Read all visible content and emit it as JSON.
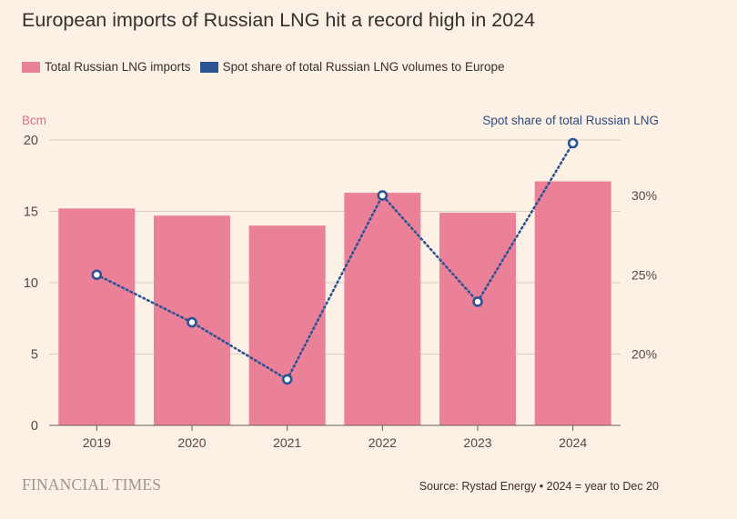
{
  "title": "European imports of Russian LNG hit a record high in 2024",
  "legend": [
    {
      "label": "Total Russian LNG imports",
      "color": "#eb8198"
    },
    {
      "label": "Spot share of total Russian LNG volumes to Europe",
      "color": "#2c5394"
    }
  ],
  "footer": {
    "logo_text": "FINANCIAL TIMES",
    "source": "Source: Rystad Energy • 2024 = year to Dec 20"
  },
  "chart_data": {
    "type": "bar",
    "categories": [
      "2019",
      "2020",
      "2021",
      "2022",
      "2023",
      "2024"
    ],
    "series": [
      {
        "name": "Total Russian LNG imports",
        "type": "bar",
        "axis": "left",
        "values": [
          15.2,
          14.7,
          14.0,
          16.3,
          14.9,
          17.1
        ],
        "color": "#eb8198"
      },
      {
        "name": "Spot share of total Russian LNG volumes to Europe",
        "type": "line",
        "style": "dotted",
        "markers": true,
        "axis": "right",
        "values": [
          25.0,
          22.0,
          18.4,
          30.0,
          23.3,
          33.3
        ],
        "color": "#2c5394"
      }
    ],
    "left_axis": {
      "unit_label": "Bcm",
      "ticks": [
        0,
        5,
        10,
        15,
        20
      ],
      "tick_labels": [
        "0",
        "5",
        "10",
        "15",
        "20"
      ],
      "range": [
        0,
        20
      ],
      "color": "#e16b8c"
    },
    "right_axis": {
      "label": "Spot share of total Russian LNG",
      "ticks": [
        20,
        25,
        30
      ],
      "tick_labels": [
        "20%",
        "25%",
        "30%"
      ],
      "range": [
        15.5,
        33.5
      ],
      "color": "#2c4a82"
    },
    "grid": true,
    "legend_position": "top-left"
  }
}
